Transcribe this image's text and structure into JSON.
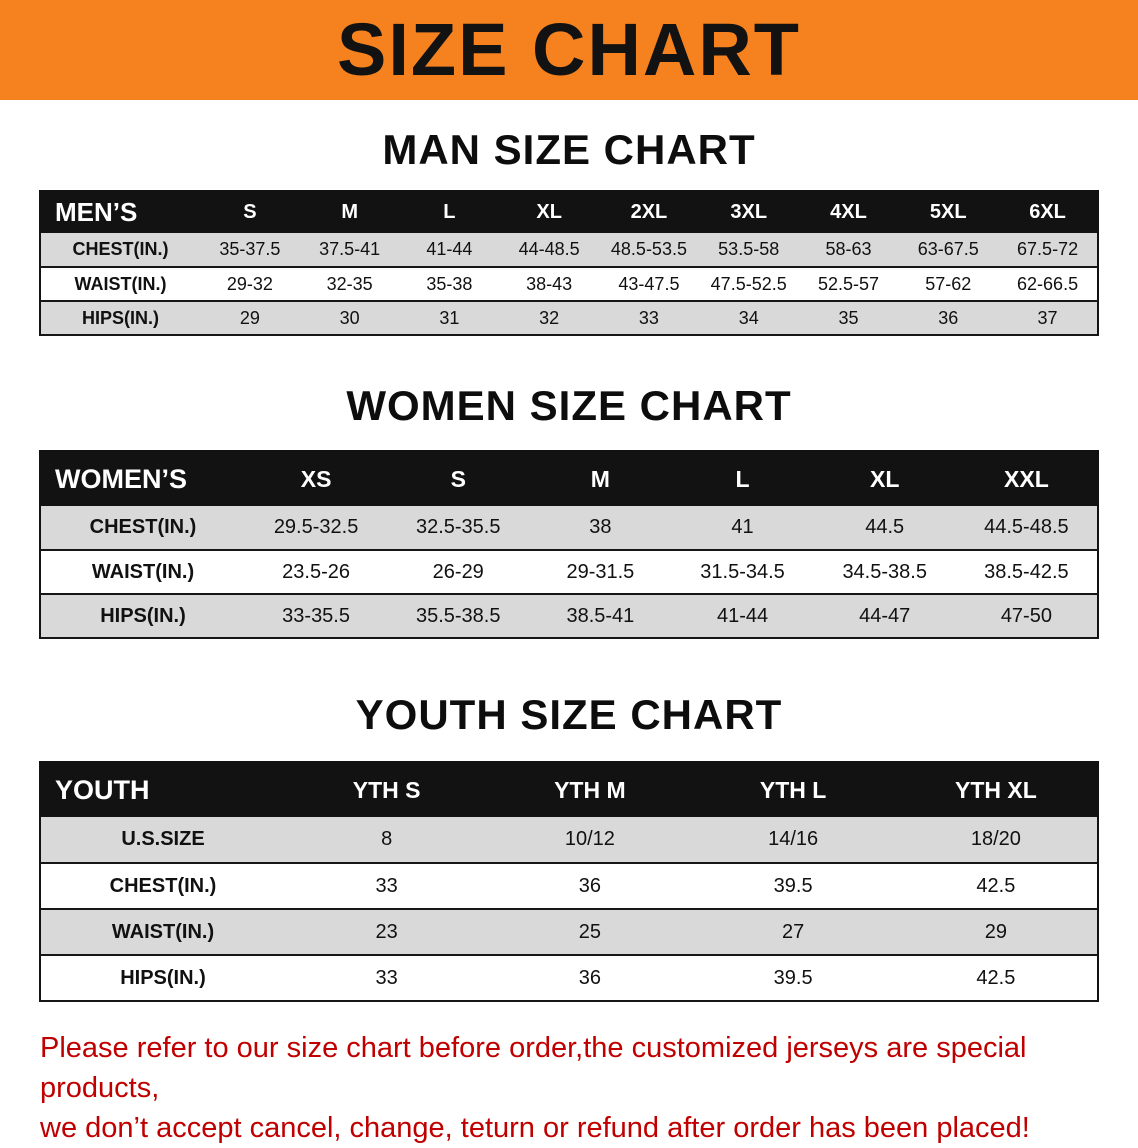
{
  "banner": {
    "title": "SIZE CHART"
  },
  "sections": {
    "men": {
      "heading": "MAN SIZE CHART"
    },
    "women": {
      "heading": "WOMEN SIZE CHART"
    },
    "youth": {
      "heading": "YOUTH SIZE CHART"
    }
  },
  "tables": {
    "men": {
      "header": [
        "MEN’S",
        "S",
        "M",
        "L",
        "XL",
        "2XL",
        "3XL",
        "4XL",
        "5XL",
        "6XL"
      ],
      "rows": [
        [
          "CHEST(IN.)",
          "35-37.5",
          "37.5-41",
          "41-44",
          "44-48.5",
          "48.5-53.5",
          "53.5-58",
          "58-63",
          "63-67.5",
          "67.5-72"
        ],
        [
          "WAIST(IN.)",
          "29-32",
          "32-35",
          "35-38",
          "38-43",
          "43-47.5",
          "47.5-52.5",
          "52.5-57",
          "57-62",
          "62-66.5"
        ],
        [
          "HIPS(IN.)",
          "29",
          "30",
          "31",
          "32",
          "33",
          "34",
          "35",
          "36",
          "37"
        ]
      ]
    },
    "women": {
      "header": [
        "WOMEN’S",
        "XS",
        "S",
        "M",
        "L",
        "XL",
        "XXL"
      ],
      "rows": [
        [
          "CHEST(IN.)",
          "29.5-32.5",
          "32.5-35.5",
          "38",
          "41",
          "44.5",
          "44.5-48.5"
        ],
        [
          "WAIST(IN.)",
          "23.5-26",
          "26-29",
          "29-31.5",
          "31.5-34.5",
          "34.5-38.5",
          "38.5-42.5"
        ],
        [
          "HIPS(IN.)",
          "33-35.5",
          "35.5-38.5",
          "38.5-41",
          "41-44",
          "44-47",
          "47-50"
        ]
      ]
    },
    "youth": {
      "header": [
        "YOUTH",
        "YTH S",
        "YTH M",
        "YTH L",
        "YTH XL"
      ],
      "rows": [
        [
          "U.S.SIZE",
          "8",
          "10/12",
          "14/16",
          "18/20"
        ],
        [
          "CHEST(IN.)",
          "33",
          "36",
          "39.5",
          "42.5"
        ],
        [
          "WAIST(IN.)",
          "23",
          "25",
          "27",
          "29"
        ],
        [
          "HIPS(IN.)",
          "33",
          "36",
          "39.5",
          "42.5"
        ]
      ]
    }
  },
  "disclaimer": {
    "line1": "Please refer to our size chart before order,the customized jerseys are special products,",
    "line2": "we don’t accept cancel, change, teturn or refund after order has been placed!"
  },
  "colors": {
    "banner_bg": "#F5821F",
    "table_header_bg": "#121212",
    "row_alt_bg": "#D9D9D9",
    "disclaimer_red": "#C00000"
  }
}
